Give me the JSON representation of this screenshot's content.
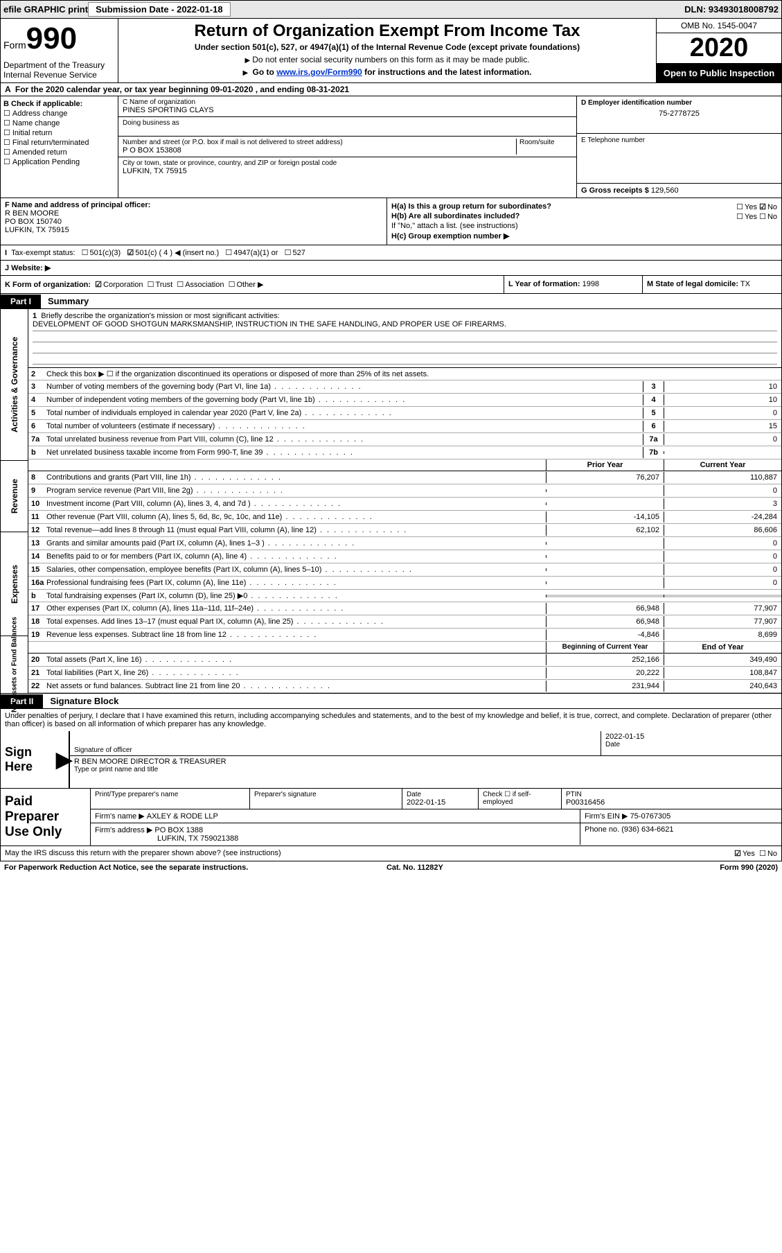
{
  "top": {
    "efile": "efile GRAPHIC print",
    "submission": "Submission Date - 2022-01-18",
    "dln": "DLN: 93493018008792"
  },
  "header": {
    "form_label": "Form",
    "form_number": "990",
    "dept": "Department of the Treasury\nInternal Revenue Service",
    "title": "Return of Organization Exempt From Income Tax",
    "sub": "Under section 501(c), 527, or 4947(a)(1) of the Internal Revenue Code (except private foundations)",
    "note1": "Do not enter social security numbers on this form as it may be made public.",
    "note2_pre": "Go to ",
    "note2_link": "www.irs.gov/Form990",
    "note2_post": " for instructions and the latest information.",
    "omb": "OMB No. 1545-0047",
    "year": "2020",
    "inspection": "Open to Public Inspection"
  },
  "row_a": "For the 2020 calendar year, or tax year beginning 09-01-2020    , and ending 08-31-2021",
  "col_b": {
    "heading": "B Check if applicable:",
    "items": [
      "Address change",
      "Name change",
      "Initial return",
      "Final return/terminated",
      "Amended return",
      "Application Pending"
    ]
  },
  "col_c": {
    "name_label": "C Name of organization",
    "name": "PINES SPORTING CLAYS",
    "dba_label": "Doing business as",
    "street_label": "Number and street (or P.O. box if mail is not delivered to street address)",
    "room_label": "Room/suite",
    "street": "P O BOX 153808",
    "city_label": "City or town, state or province, country, and ZIP or foreign postal code",
    "city": "LUFKIN, TX  75915"
  },
  "col_d": {
    "ein_label": "D Employer identification number",
    "ein": "75-2778725",
    "phone_label": "E Telephone number",
    "gross_label": "G Gross receipts $",
    "gross": "129,560"
  },
  "col_f": {
    "label": "F  Name and address of principal officer:",
    "name": "R BEN MOORE",
    "addr1": "PO BOX 150740",
    "addr2": "LUFKIN, TX  75915"
  },
  "col_h": {
    "ha": "H(a)  Is this a group return for subordinates?",
    "hb": "H(b)  Are all subordinates included?",
    "hb_note": "If \"No,\" attach a list. (see instructions)",
    "hc": "H(c)  Group exemption number ▶",
    "yes": "Yes",
    "no": "No"
  },
  "row_i": {
    "label": "Tax-exempt status:",
    "opts": [
      "501(c)(3)",
      "501(c) ( 4 ) ◀ (insert no.)",
      "4947(a)(1) or",
      "527"
    ]
  },
  "row_j": {
    "label": "J   Website: ▶"
  },
  "row_k": {
    "k1": "K Form of organization:",
    "k1_opts": [
      "Corporation",
      "Trust",
      "Association",
      "Other ▶"
    ],
    "k2_label": "L Year of formation:",
    "k2_val": "1998",
    "k3_label": "M State of legal domicile:",
    "k3_val": "TX"
  },
  "part1": {
    "tab": "Part I",
    "title": "Summary"
  },
  "vert_labels": [
    "Activities & Governance",
    "Revenue",
    "Expenses",
    "Net Assets or Fund Balances"
  ],
  "mission": {
    "num": "1",
    "label": "Briefly describe the organization's mission or most significant activities:",
    "text": "DEVELOPMENT OF GOOD SHOTGUN MARKSMANSHIP, INSTRUCTION IN THE SAFE HANDLING, AND PROPER USE OF FIREARMS."
  },
  "gov_lines": [
    {
      "n": "2",
      "t": "Check this box ▶ ☐  if the organization discontinued its operations or disposed of more than 25% of its net assets."
    },
    {
      "n": "3",
      "t": "Number of voting members of the governing body (Part VI, line 1a)",
      "box": "3",
      "v": "10"
    },
    {
      "n": "4",
      "t": "Number of independent voting members of the governing body (Part VI, line 1b)",
      "box": "4",
      "v": "10"
    },
    {
      "n": "5",
      "t": "Total number of individuals employed in calendar year 2020 (Part V, line 2a)",
      "box": "5",
      "v": "0"
    },
    {
      "n": "6",
      "t": "Total number of volunteers (estimate if necessary)",
      "box": "6",
      "v": "15"
    },
    {
      "n": "7a",
      "t": "Total unrelated business revenue from Part VIII, column (C), line 12",
      "box": "7a",
      "v": "0"
    },
    {
      "n": "b",
      "t": "Net unrelated business taxable income from Form 990-T, line 39",
      "box": "7b",
      "v": ""
    }
  ],
  "twocol": {
    "prior": "Prior Year",
    "current": "Current Year",
    "beg": "Beginning of Current Year",
    "end": "End of Year"
  },
  "rev_lines": [
    {
      "n": "8",
      "t": "Contributions and grants (Part VIII, line 1h)",
      "p": "76,207",
      "c": "110,887"
    },
    {
      "n": "9",
      "t": "Program service revenue (Part VIII, line 2g)",
      "p": "",
      "c": "0"
    },
    {
      "n": "10",
      "t": "Investment income (Part VIII, column (A), lines 3, 4, and 7d )",
      "p": "",
      "c": "3"
    },
    {
      "n": "11",
      "t": "Other revenue (Part VIII, column (A), lines 5, 6d, 8c, 9c, 10c, and 11e)",
      "p": "-14,105",
      "c": "-24,284"
    },
    {
      "n": "12",
      "t": "Total revenue—add lines 8 through 11 (must equal Part VIII, column (A), line 12)",
      "p": "62,102",
      "c": "86,606"
    }
  ],
  "exp_lines": [
    {
      "n": "13",
      "t": "Grants and similar amounts paid (Part IX, column (A), lines 1–3 )",
      "p": "",
      "c": "0"
    },
    {
      "n": "14",
      "t": "Benefits paid to or for members (Part IX, column (A), line 4)",
      "p": "",
      "c": "0"
    },
    {
      "n": "15",
      "t": "Salaries, other compensation, employee benefits (Part IX, column (A), lines 5–10)",
      "p": "",
      "c": "0"
    },
    {
      "n": "16a",
      "t": "Professional fundraising fees (Part IX, column (A), line 11e)",
      "p": "",
      "c": "0"
    },
    {
      "n": "b",
      "t": "Total fundraising expenses (Part IX, column (D), line 25) ▶0",
      "grey": true
    },
    {
      "n": "17",
      "t": "Other expenses (Part IX, column (A), lines 11a–11d, 11f–24e)",
      "p": "66,948",
      "c": "77,907"
    },
    {
      "n": "18",
      "t": "Total expenses. Add lines 13–17 (must equal Part IX, column (A), line 25)",
      "p": "66,948",
      "c": "77,907"
    },
    {
      "n": "19",
      "t": "Revenue less expenses. Subtract line 18 from line 12",
      "p": "-4,846",
      "c": "8,699"
    }
  ],
  "net_lines": [
    {
      "n": "20",
      "t": "Total assets (Part X, line 16)",
      "p": "252,166",
      "c": "349,490"
    },
    {
      "n": "21",
      "t": "Total liabilities (Part X, line 26)",
      "p": "20,222",
      "c": "108,847"
    },
    {
      "n": "22",
      "t": "Net assets or fund balances. Subtract line 21 from line 20",
      "p": "231,944",
      "c": "240,643"
    }
  ],
  "part2": {
    "tab": "Part II",
    "title": "Signature Block"
  },
  "sig": {
    "declaration": "Under penalties of perjury, I declare that I have examined this return, including accompanying schedules and statements, and to the best of my knowledge and belief, it is true, correct, and complete. Declaration of preparer (other than officer) is based on all information of which preparer has any knowledge.",
    "sign_here": "Sign Here",
    "sig_off": "Signature of officer",
    "date_label": "Date",
    "date": "2022-01-15",
    "name_title": "R BEN MOORE  DIRECTOR & TREASURER",
    "type_label": "Type or print name and title"
  },
  "prep": {
    "label": "Paid Preparer Use Only",
    "h1": "Print/Type preparer's name",
    "h2": "Preparer's signature",
    "h3": "Date",
    "h4": "Check ☐ if self-employed",
    "h5": "PTIN",
    "date": "2022-01-15",
    "ptin": "P00316456",
    "firm_label": "Firm's name  ▶",
    "firm": "AXLEY & RODE LLP",
    "ein_label": "Firm's EIN ▶",
    "ein": "75-0767305",
    "addr_label": "Firm's address ▶",
    "addr1": "PO BOX 1388",
    "addr2": "LUFKIN, TX  759021388",
    "phone_label": "Phone no.",
    "phone": "(936) 634-6621",
    "discuss": "May the IRS discuss this return with the preparer shown above? (see instructions)",
    "yes": "Yes",
    "no": "No"
  },
  "footer": {
    "left": "For Paperwork Reduction Act Notice, see the separate instructions.",
    "mid": "Cat. No. 11282Y",
    "right": "Form 990 (2020)"
  }
}
